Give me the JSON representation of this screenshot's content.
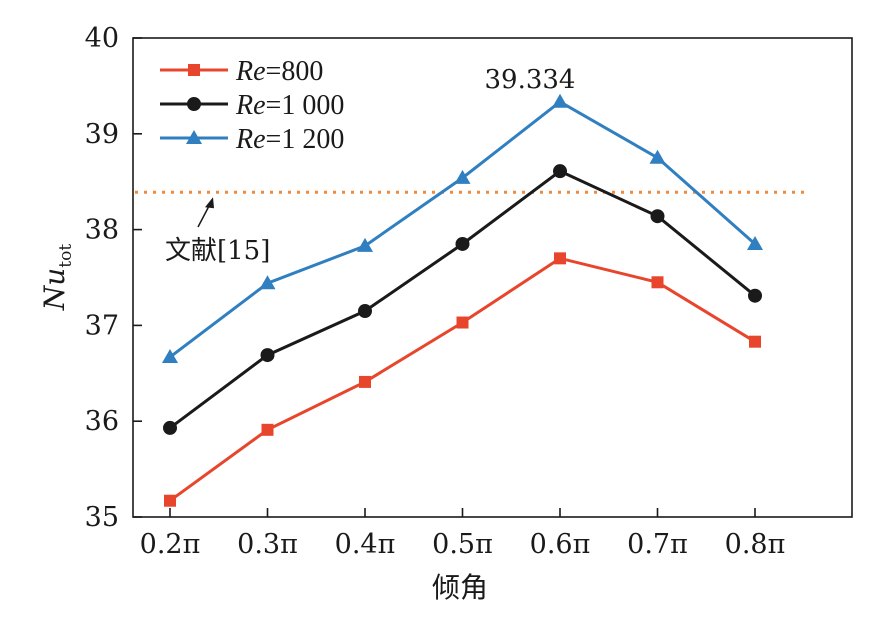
{
  "chart_data": {
    "type": "line",
    "title": "",
    "xlabel": "倾角",
    "ylabel_main": "Nu",
    "ylabel_sub": "tot",
    "categories": [
      "0.2π",
      "0.3π",
      "0.4π",
      "0.5π",
      "0.6π",
      "0.7π",
      "0.8π"
    ],
    "ylim": [
      35,
      40
    ],
    "yticks": [
      35,
      36,
      37,
      38,
      39,
      40
    ],
    "grid": false,
    "legend_position": "top-left",
    "series": [
      {
        "name_italic": "Re",
        "name_rest": "=800",
        "marker": "square",
        "color": "#e8462c",
        "values": [
          35.17,
          35.91,
          36.41,
          37.03,
          37.7,
          37.45,
          36.83
        ]
      },
      {
        "name_italic": "Re",
        "name_rest": "=1 000",
        "marker": "circle",
        "color": "#1a1a1a",
        "values": [
          35.93,
          36.69,
          37.15,
          37.85,
          38.61,
          38.14,
          37.31
        ]
      },
      {
        "name_italic": "Re",
        "name_rest": "=1 200",
        "marker": "triangle",
        "color": "#2f7fc1",
        "values": [
          36.67,
          37.44,
          37.83,
          38.54,
          39.334,
          38.75,
          37.85
        ]
      }
    ],
    "reference_line": {
      "label": "文献[15]",
      "value": 38.39,
      "color": "#f08a3c",
      "style": "dotted"
    },
    "annotations": [
      {
        "text": "39.334",
        "series_index": 2,
        "point_index": 4
      }
    ]
  }
}
